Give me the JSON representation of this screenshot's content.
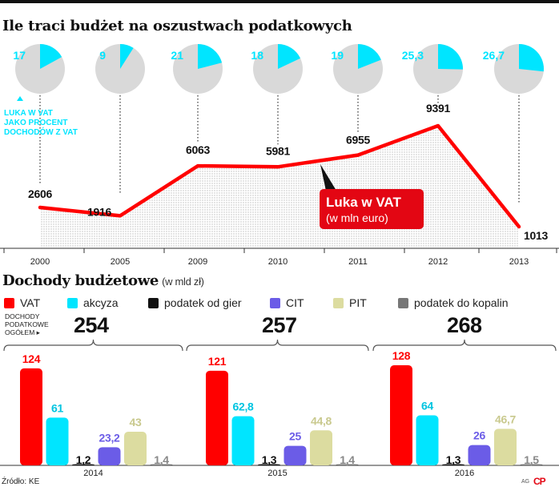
{
  "title": "Ile traci budżet na oszustwach podatkowych",
  "chart_data": [
    {
      "type": "line",
      "categories": [
        "2000",
        "2005",
        "2009",
        "2010",
        "2011",
        "2012",
        "2013"
      ],
      "series": [
        {
          "name": "Luka w VAT",
          "unit": "(w mln euro)",
          "values": [
            2606,
            1916,
            6063,
            5981,
            6955,
            9391,
            1013
          ],
          "color": "#ff0000"
        }
      ],
      "pies": {
        "label_lines": [
          "LUKA W VAT",
          "JAKO PROCENT",
          "DOCHODÓW Z VAT"
        ],
        "values": [
          17,
          9,
          21,
          18,
          19,
          25.3,
          26.7
        ],
        "labels": [
          "17",
          "9",
          "21",
          "18",
          "19",
          "25,3",
          "26,7"
        ],
        "color": "#00e5ff",
        "background": "#d9d9d9"
      },
      "value_labels": [
        "2606",
        "1916",
        "6063",
        "5981",
        "6955",
        "9391",
        "1013"
      ]
    },
    {
      "type": "bar",
      "title": "Dochody budżetowe",
      "subtitle": "(w mld zł)",
      "categories": [
        "2014",
        "2015",
        "2016"
      ],
      "totals_label": [
        "DOCHODY",
        "PODATKOWE",
        "OGÓŁEM"
      ],
      "totals": [
        "254",
        "257",
        "268"
      ],
      "series": [
        {
          "name": "VAT",
          "color": "#ff0000",
          "values": [
            124,
            121,
            128
          ],
          "labels": [
            "124",
            "121",
            "128"
          ]
        },
        {
          "name": "akcyza",
          "color": "#00e5ff",
          "values": [
            61,
            62.8,
            64
          ],
          "labels": [
            "61",
            "62,8",
            "64"
          ]
        },
        {
          "name": "podatek od gier",
          "color": "#111111",
          "values": [
            1.2,
            1.3,
            1.3
          ],
          "labels": [
            "1,2",
            "1,3",
            "1,3"
          ]
        },
        {
          "name": "CIT",
          "color": "#6b5ce7",
          "values": [
            23.2,
            25,
            26
          ],
          "labels": [
            "23,2",
            "25",
            "26"
          ]
        },
        {
          "name": "PIT",
          "color": "#dcdca0",
          "values": [
            43,
            44.8,
            46.7
          ],
          "labels": [
            "43",
            "44,8",
            "46,7"
          ]
        },
        {
          "name": "podatek do kopalin",
          "color": "#777777",
          "values": [
            1.4,
            1.4,
            1.5
          ],
          "labels": [
            "1,4",
            "1,4",
            "1,5"
          ]
        }
      ]
    }
  ],
  "source": "Źródło: KE",
  "credit": "AG",
  "logo": "CP"
}
